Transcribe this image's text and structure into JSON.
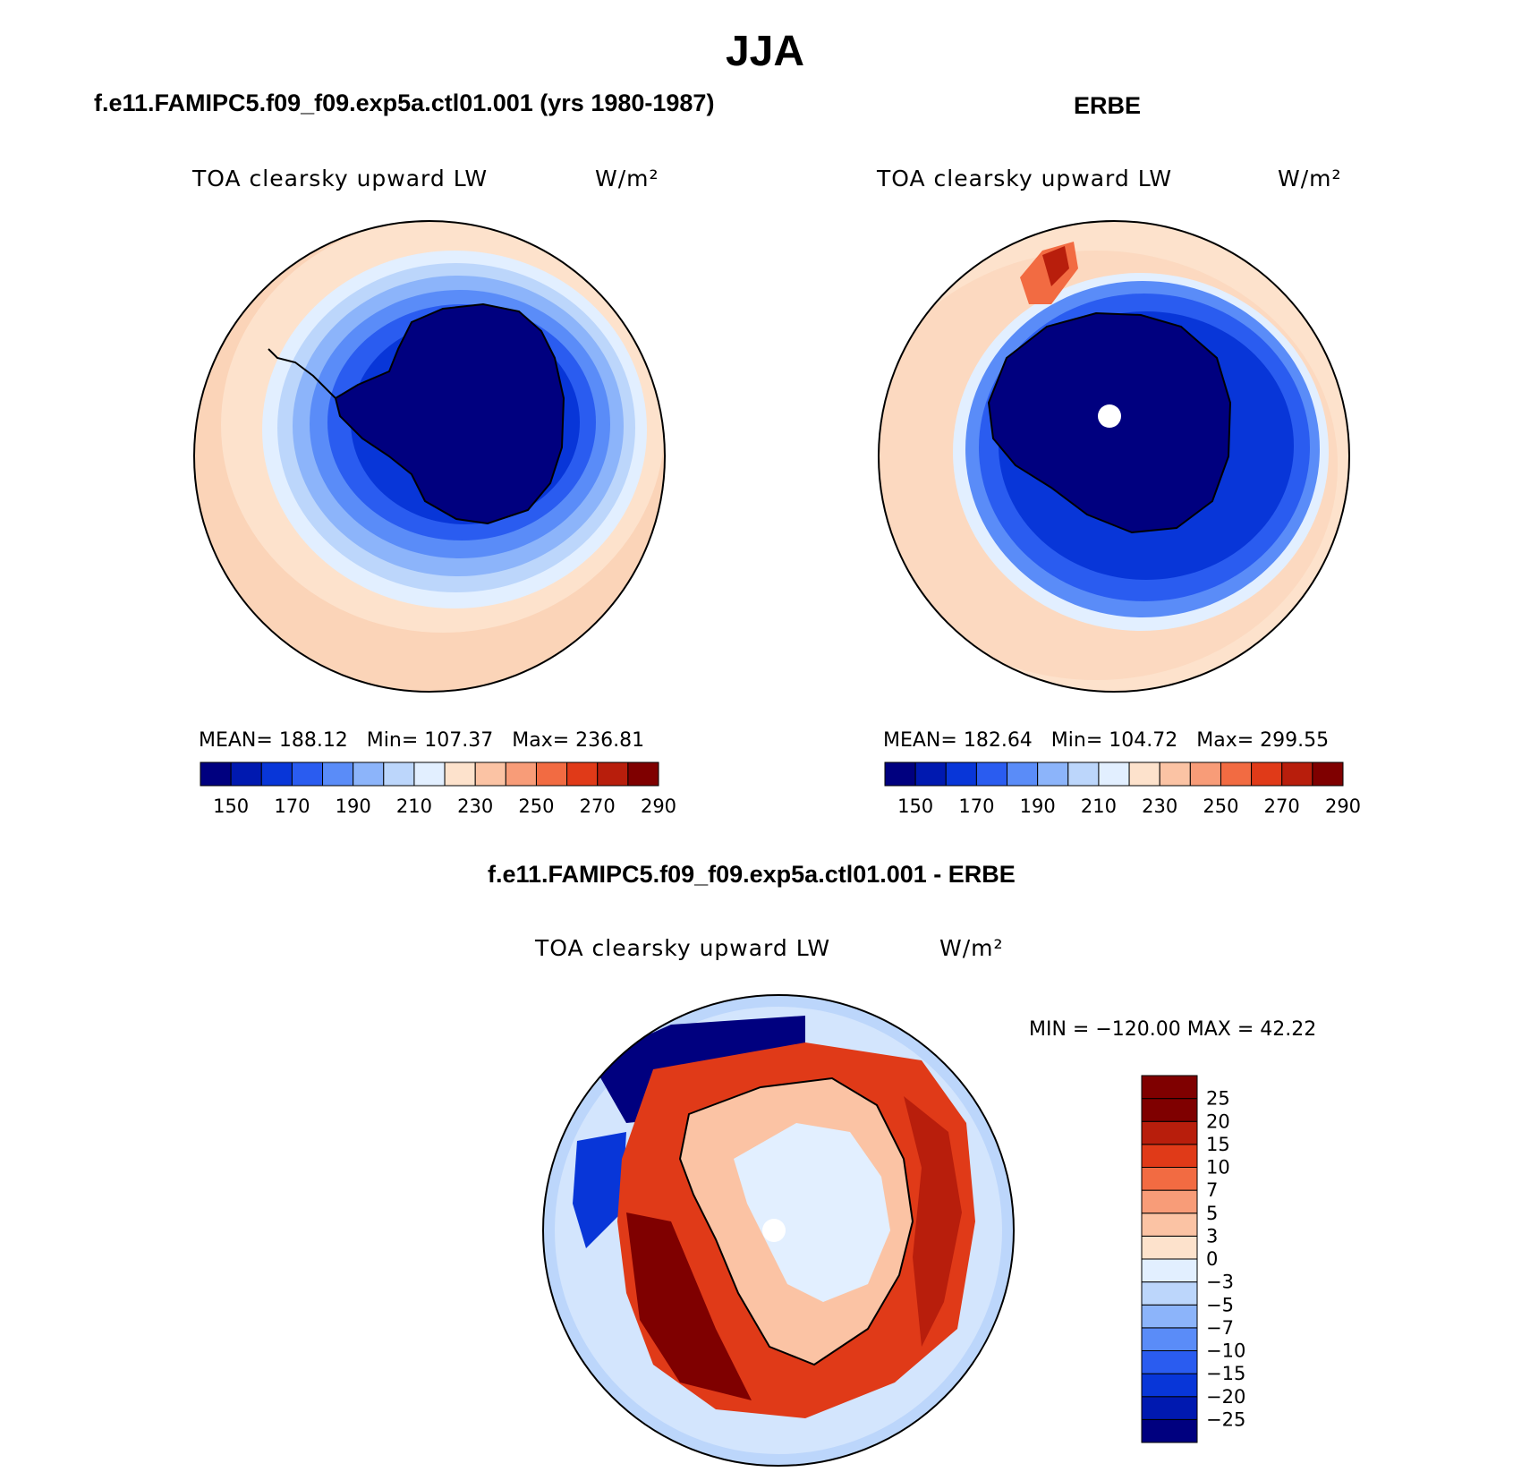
{
  "page": {
    "title": "JJA"
  },
  "panels": [
    {
      "id": "model",
      "title": "f.e11.FAMIPC5.f09_f09.exp5a.ctl01.001 (yrs 1980-1987)",
      "variable": "TOA clearsky upward LW",
      "units": "W/m²",
      "stats": {
        "mean_label": "MEAN=",
        "mean": "188.12",
        "min_label": "Min=",
        "min": "107.37",
        "max_label": "Max=",
        "max": "236.81"
      },
      "colorbar_ticks": [
        "150",
        "170",
        "190",
        "210",
        "230",
        "250",
        "270",
        "290"
      ]
    },
    {
      "id": "obs",
      "title": "ERBE",
      "variable": "TOA clearsky upward LW",
      "units": "W/m²",
      "stats": {
        "mean_label": "MEAN=",
        "mean": "182.64",
        "min_label": "Min=",
        "min": "104.72",
        "max_label": "Max=",
        "max": "299.55"
      },
      "colorbar_ticks": [
        "150",
        "170",
        "190",
        "210",
        "230",
        "250",
        "270",
        "290"
      ]
    },
    {
      "id": "diff",
      "title": "f.e11.FAMIPC5.f09_f09.exp5a.ctl01.001 - ERBE",
      "variable": "TOA clearsky upward LW",
      "units": "W/m²",
      "stats_line": "MIN = −120.00  MAX =   42.22",
      "colorbar_ticks": [
        "25",
        "20",
        "15",
        "10",
        "7",
        "5",
        "3",
        "0",
        "−3",
        "−5",
        "−7",
        "−10",
        "−15",
        "−20",
        "−25"
      ]
    }
  ],
  "chart_data": [
    {
      "type": "heatmap",
      "projection": "south-polar-stereographic",
      "title": "f.e11.FAMIPC5.f09_f09.exp5a.ctl01.001 (yrs 1980-1987)",
      "variable": "TOA clearsky upward LW",
      "units": "W/m²",
      "mean": 188.12,
      "min": 107.37,
      "max": 236.81,
      "levels": [
        150,
        160,
        170,
        180,
        190,
        200,
        210,
        220,
        230,
        240,
        250,
        260,
        270,
        280,
        290
      ],
      "colors": [
        "#00007f",
        "#0019b0",
        "#0836d8",
        "#2a5cf0",
        "#5a8cf8",
        "#8cb4fa",
        "#bcd6fb",
        "#e2efff",
        "#fde2cc",
        "#fbc3a4",
        "#f89c78",
        "#f26b42",
        "#e03a18",
        "#b81e0c",
        "#7f0000"
      ]
    },
    {
      "type": "heatmap",
      "projection": "south-polar-stereographic",
      "title": "ERBE",
      "variable": "TOA clearsky upward LW",
      "units": "W/m²",
      "mean": 182.64,
      "min": 104.72,
      "max": 299.55,
      "levels": [
        150,
        160,
        170,
        180,
        190,
        200,
        210,
        220,
        230,
        240,
        250,
        260,
        270,
        280,
        290
      ],
      "colors": [
        "#00007f",
        "#0019b0",
        "#0836d8",
        "#2a5cf0",
        "#5a8cf8",
        "#8cb4fa",
        "#bcd6fb",
        "#e2efff",
        "#fde2cc",
        "#fbc3a4",
        "#f89c78",
        "#f26b42",
        "#e03a18",
        "#b81e0c",
        "#7f0000"
      ]
    },
    {
      "type": "heatmap",
      "projection": "south-polar-stereographic",
      "title": "f.e11.FAMIPC5.f09_f09.exp5a.ctl01.001 - ERBE",
      "variable": "TOA clearsky upward LW",
      "units": "W/m²",
      "min": -120.0,
      "max": 42.22,
      "levels": [
        -25,
        -20,
        -15,
        -10,
        -7,
        -5,
        -3,
        0,
        3,
        5,
        7,
        10,
        15,
        20,
        25
      ],
      "colors": [
        "#00007f",
        "#0019b0",
        "#0836d8",
        "#2a5cf0",
        "#5a8cf8",
        "#8cb4fa",
        "#bcd6fb",
        "#e2efff",
        "#fde2cc",
        "#fbc3a4",
        "#f89c78",
        "#f26b42",
        "#e03a18",
        "#b81e0c",
        "#7f0000",
        "#7f0000"
      ]
    }
  ]
}
